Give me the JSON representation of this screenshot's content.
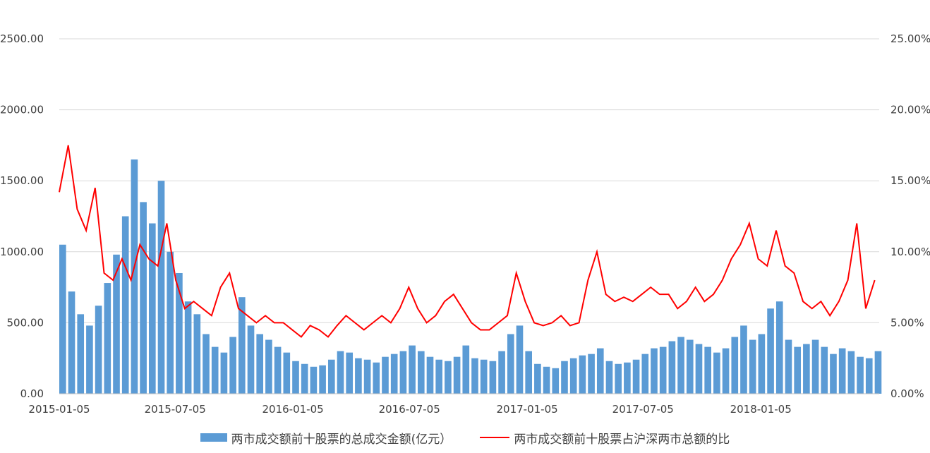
{
  "chart_data": {
    "type": "bar+line",
    "title": "",
    "x_ticks": [
      "2015-01-05",
      "2015-07-05",
      "2016-01-05",
      "2016-07-05",
      "2017-01-05",
      "2017-07-05",
      "2018-01-05"
    ],
    "x_range": [
      "2015-01-05",
      "2018-07-09"
    ],
    "y_left": {
      "label": "",
      "range": [
        0,
        2500
      ],
      "ticks": [
        "0.00",
        "500.00",
        "1000.00",
        "1500.00",
        "2000.00",
        "2500.00"
      ]
    },
    "y_right": {
      "label": "",
      "range": [
        0,
        25
      ],
      "unit": "%",
      "ticks": [
        "0.00%",
        "5.00%",
        "10.00%",
        "15.00%",
        "20.00%",
        "25.00%"
      ]
    },
    "grid": true,
    "legend_position": "bottom",
    "series": [
      {
        "name": "两市成交额前十股票的总成交金额(亿元）",
        "type": "bar",
        "axis": "left",
        "color": "#5B9BD5",
        "x": [
          "2015-01-05",
          "2015-01-19",
          "2015-02-02",
          "2015-02-16",
          "2015-03-02",
          "2015-03-16",
          "2015-03-30",
          "2015-04-13",
          "2015-04-27",
          "2015-05-11",
          "2015-05-25",
          "2015-06-08",
          "2015-06-22",
          "2015-07-06",
          "2015-07-20",
          "2015-08-03",
          "2015-08-17",
          "2015-08-31",
          "2015-09-14",
          "2015-09-28",
          "2015-10-12",
          "2015-10-26",
          "2015-11-09",
          "2015-11-23",
          "2015-12-07",
          "2015-12-21",
          "2016-01-04",
          "2016-01-18",
          "2016-02-01",
          "2016-02-15",
          "2016-02-29",
          "2016-03-14",
          "2016-03-28",
          "2016-04-11",
          "2016-04-25",
          "2016-05-09",
          "2016-05-23",
          "2016-06-06",
          "2016-06-20",
          "2016-07-04",
          "2016-07-18",
          "2016-08-01",
          "2016-08-15",
          "2016-08-29",
          "2016-09-12",
          "2016-09-26",
          "2016-10-10",
          "2016-10-24",
          "2016-11-07",
          "2016-11-21",
          "2016-12-05",
          "2016-12-19",
          "2017-01-02",
          "2017-01-16",
          "2017-01-30",
          "2017-02-13",
          "2017-02-27",
          "2017-03-13",
          "2017-03-27",
          "2017-04-10",
          "2017-04-24",
          "2017-05-08",
          "2017-05-22",
          "2017-06-05",
          "2017-06-19",
          "2017-07-03",
          "2017-07-17",
          "2017-07-31",
          "2017-08-14",
          "2017-08-28",
          "2017-09-11",
          "2017-09-25",
          "2017-10-09",
          "2017-10-23",
          "2017-11-06",
          "2017-11-20",
          "2017-12-04",
          "2017-12-18",
          "2018-01-01",
          "2018-01-15",
          "2018-01-29",
          "2018-02-12",
          "2018-02-26",
          "2018-03-12",
          "2018-03-26",
          "2018-04-09",
          "2018-04-23",
          "2018-05-07",
          "2018-05-21",
          "2018-06-04",
          "2018-06-18",
          "2018-07-02"
        ],
        "values": [
          1050,
          720,
          560,
          480,
          620,
          780,
          980,
          1250,
          1650,
          1350,
          1200,
          1500,
          1000,
          850,
          650,
          560,
          420,
          330,
          290,
          400,
          680,
          480,
          420,
          380,
          330,
          290,
          230,
          210,
          190,
          200,
          240,
          300,
          290,
          250,
          240,
          220,
          260,
          280,
          300,
          340,
          300,
          260,
          240,
          230,
          260,
          340,
          250,
          240,
          230,
          300,
          420,
          480,
          300,
          210,
          190,
          180,
          230,
          250,
          270,
          280,
          320,
          230,
          210,
          220,
          240,
          280,
          320,
          330,
          370,
          400,
          380,
          350,
          330,
          290,
          320,
          400,
          480,
          380,
          420,
          600,
          650,
          380,
          330,
          350,
          380,
          330,
          280,
          320,
          300,
          260,
          250,
          300
        ]
      },
      {
        "name": "两市成交额前十股票占沪深两市总额的比",
        "type": "line",
        "axis": "right",
        "color": "#FF0000",
        "x": [
          "2015-01-05",
          "2015-01-19",
          "2015-02-02",
          "2015-02-16",
          "2015-03-02",
          "2015-03-16",
          "2015-03-30",
          "2015-04-13",
          "2015-04-27",
          "2015-05-11",
          "2015-05-25",
          "2015-06-08",
          "2015-06-22",
          "2015-07-06",
          "2015-07-20",
          "2015-08-03",
          "2015-08-17",
          "2015-08-31",
          "2015-09-14",
          "2015-09-28",
          "2015-10-12",
          "2015-10-26",
          "2015-11-09",
          "2015-11-23",
          "2015-12-07",
          "2015-12-21",
          "2016-01-04",
          "2016-01-18",
          "2016-02-01",
          "2016-02-15",
          "2016-02-29",
          "2016-03-14",
          "2016-03-28",
          "2016-04-11",
          "2016-04-25",
          "2016-05-09",
          "2016-05-23",
          "2016-06-06",
          "2016-06-20",
          "2016-07-04",
          "2016-07-18",
          "2016-08-01",
          "2016-08-15",
          "2016-08-29",
          "2016-09-12",
          "2016-09-26",
          "2016-10-10",
          "2016-10-24",
          "2016-11-07",
          "2016-11-21",
          "2016-12-05",
          "2016-12-19",
          "2017-01-02",
          "2017-01-16",
          "2017-01-30",
          "2017-02-13",
          "2017-02-27",
          "2017-03-13",
          "2017-03-27",
          "2017-04-10",
          "2017-04-24",
          "2017-05-08",
          "2017-05-22",
          "2017-06-05",
          "2017-06-19",
          "2017-07-03",
          "2017-07-17",
          "2017-07-31",
          "2017-08-14",
          "2017-08-28",
          "2017-09-11",
          "2017-09-25",
          "2017-10-09",
          "2017-10-23",
          "2017-11-06",
          "2017-11-20",
          "2017-12-04",
          "2017-12-18",
          "2018-01-01",
          "2018-01-15",
          "2018-01-29",
          "2018-02-12",
          "2018-02-26",
          "2018-03-12",
          "2018-03-26",
          "2018-04-09",
          "2018-04-23",
          "2018-05-07",
          "2018-05-21",
          "2018-06-04",
          "2018-06-18",
          "2018-07-02"
        ],
        "values": [
          14.2,
          17.5,
          13.0,
          11.5,
          14.5,
          8.5,
          8.0,
          9.5,
          8.0,
          10.5,
          9.5,
          9.0,
          12.0,
          8.0,
          6.0,
          6.5,
          6.0,
          5.5,
          7.5,
          8.5,
          6.0,
          5.5,
          5.0,
          5.5,
          5.0,
          5.0,
          4.5,
          4.0,
          4.8,
          4.5,
          4.0,
          4.8,
          5.5,
          5.0,
          4.5,
          5.0,
          5.5,
          5.0,
          6.0,
          7.5,
          6.0,
          5.0,
          5.5,
          6.5,
          7.0,
          6.0,
          5.0,
          4.5,
          4.5,
          5.0,
          5.5,
          8.5,
          6.5,
          5.0,
          4.8,
          5.0,
          5.5,
          4.8,
          5.0,
          8.0,
          10.0,
          7.0,
          6.5,
          6.8,
          6.5,
          7.0,
          7.5,
          7.0,
          7.0,
          6.0,
          6.5,
          7.5,
          6.5,
          7.0,
          8.0,
          9.5,
          10.5,
          12.0,
          9.5,
          9.0,
          11.5,
          9.0,
          8.5,
          6.5,
          6.0,
          6.5,
          5.5,
          6.5,
          8.0,
          12.0,
          6.0,
          8.0
        ]
      }
    ]
  }
}
